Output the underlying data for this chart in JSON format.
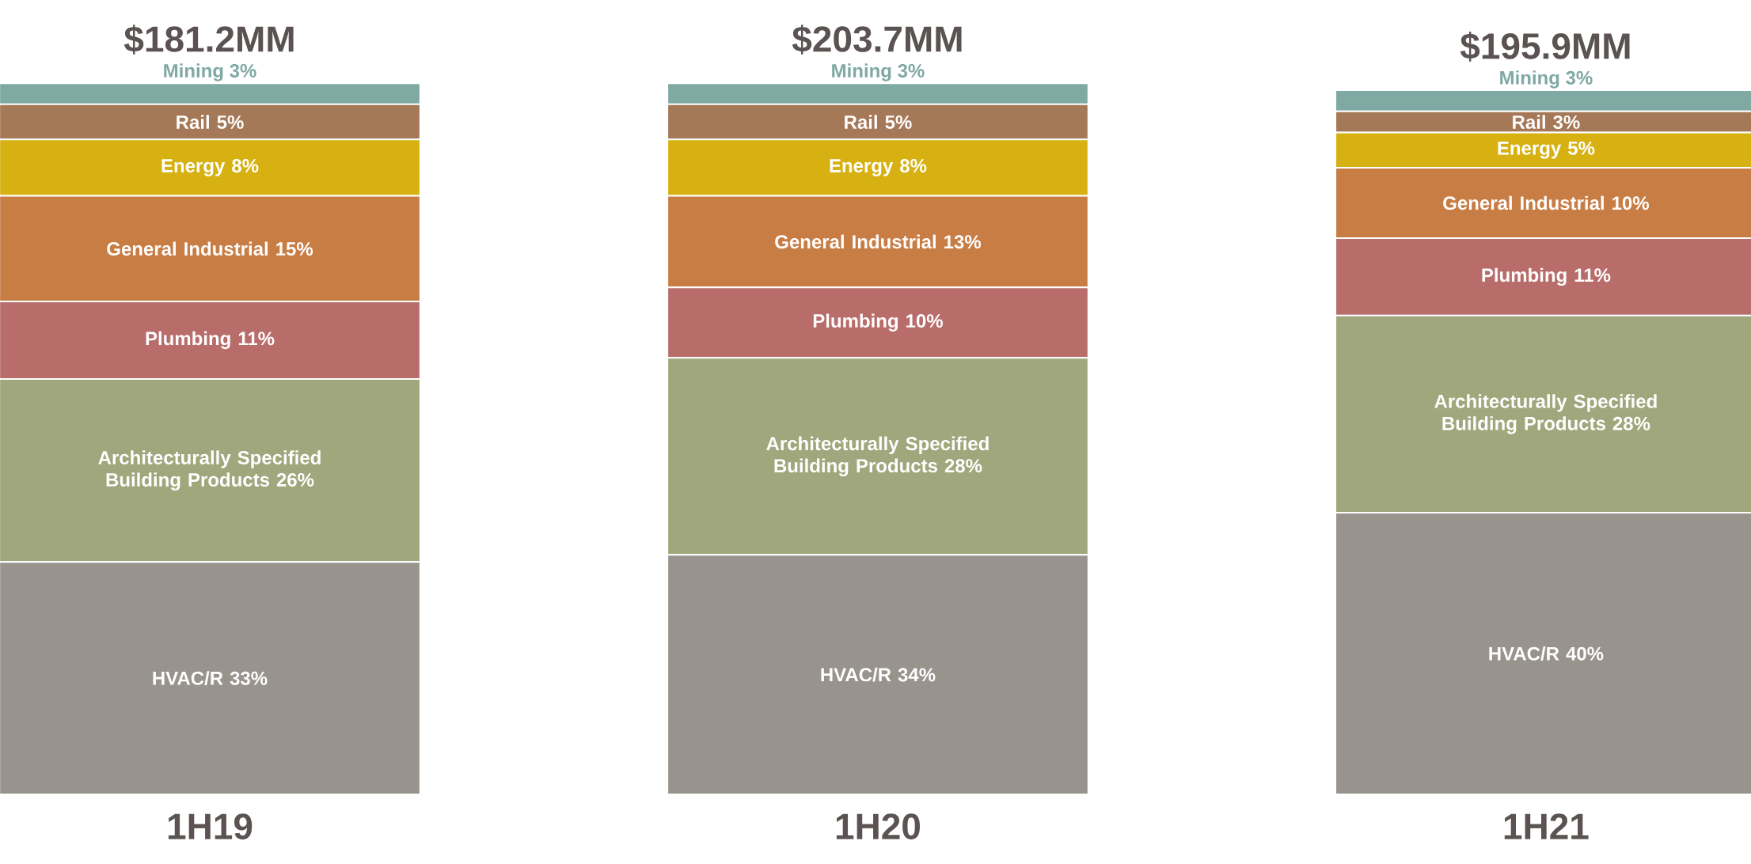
{
  "chart_data": {
    "type": "bar",
    "stacked": true,
    "tick_labels": "x",
    "categories": [
      "1H19",
      "1H20",
      "1H21"
    ],
    "annotations": [
      {
        "text": "$181.2MM",
        "x": "1H19",
        "y": 101
      },
      {
        "text": "$203.7MM",
        "x": "1H20",
        "y": 101
      },
      {
        "text": "$195.9MM",
        "x": "1H21",
        "y": 100
      }
    ],
    "series": [
      {
        "name": "HVAC/R",
        "color": "#99938d",
        "values": [
          33,
          34,
          40
        ],
        "value_labels": [
          "33%",
          "34%",
          "40%"
        ]
      },
      {
        "name": "Architecturally Specified Building Products",
        "color": "#a0a77c",
        "values": [
          26,
          28,
          28
        ],
        "value_labels": [
          "26%",
          "28%",
          "28%"
        ]
      },
      {
        "name": "Plumbing",
        "color": "#b86d6b",
        "values": [
          11,
          10,
          11
        ],
        "value_labels": [
          "11%",
          "10%",
          "11%"
        ]
      },
      {
        "name": "General Industrial",
        "color": "#c87d45",
        "values": [
          15,
          13,
          10
        ],
        "value_labels": [
          "15%",
          "13%",
          "10%"
        ]
      },
      {
        "name": "Energy",
        "color": "#d6b111",
        "values": [
          8,
          8,
          5
        ],
        "value_labels": [
          "8%",
          "8%",
          "5%"
        ]
      },
      {
        "name": "Rail",
        "color": "#a57857",
        "values": [
          5,
          5,
          3
        ],
        "value_labels": [
          "5%",
          "5%",
          "3%"
        ]
      },
      {
        "name": "Mining",
        "color": "#7fa9a3",
        "values": [
          3,
          3,
          3
        ],
        "value_labels": [
          "3%",
          "3%",
          "3%"
        ]
      }
    ]
  }
}
